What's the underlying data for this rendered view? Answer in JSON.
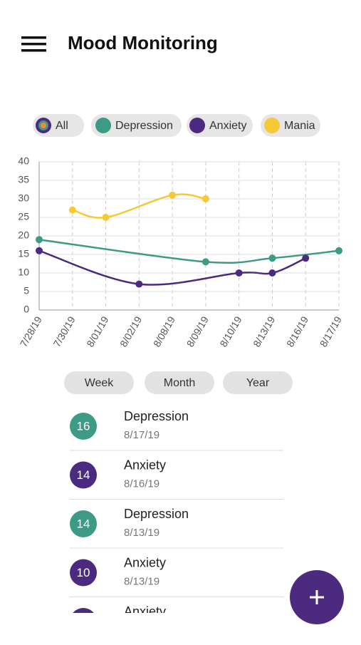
{
  "header": {
    "title": "Mood Monitoring"
  },
  "filter_all": "All",
  "chart_data": {
    "type": "line",
    "categories": [
      "7/28/19",
      "7/30/19",
      "8/01/19",
      "8/02/19",
      "8/08/19",
      "8/09/19",
      "8/10/19",
      "8/13/19",
      "8/16/19",
      "8/17/19"
    ],
    "series": [
      {
        "name": "Depression",
        "color": "#3d9a85",
        "x": [
          "7/28/19",
          "8/09/19",
          "8/13/19",
          "8/17/19"
        ],
        "values": [
          19,
          13,
          14,
          16
        ]
      },
      {
        "name": "Anxiety",
        "color": "#4b2a80",
        "x": [
          "7/28/19",
          "8/02/19",
          "8/10/19",
          "8/13/19",
          "8/16/19"
        ],
        "values": [
          16,
          7,
          10,
          10,
          14
        ]
      },
      {
        "name": "Mania",
        "color": "#f6c935",
        "x": [
          "7/30/19",
          "8/01/19",
          "8/08/19",
          "8/09/19"
        ],
        "values": [
          27,
          25,
          31,
          30
        ]
      }
    ],
    "ylim": [
      0,
      40
    ],
    "yticks": [
      0,
      5,
      10,
      15,
      20,
      25,
      30,
      35,
      40
    ],
    "grid": true
  },
  "ranges": [
    "Week",
    "Month",
    "Year"
  ],
  "entries": [
    {
      "value": 16,
      "name": "Depression",
      "date": "8/17/19"
    },
    {
      "value": 14,
      "name": "Anxiety",
      "date": "8/16/19"
    },
    {
      "value": 14,
      "name": "Depression",
      "date": "8/13/19"
    },
    {
      "value": 10,
      "name": "Anxiety",
      "date": "8/13/19"
    },
    {
      "name": "Anxiety"
    }
  ]
}
